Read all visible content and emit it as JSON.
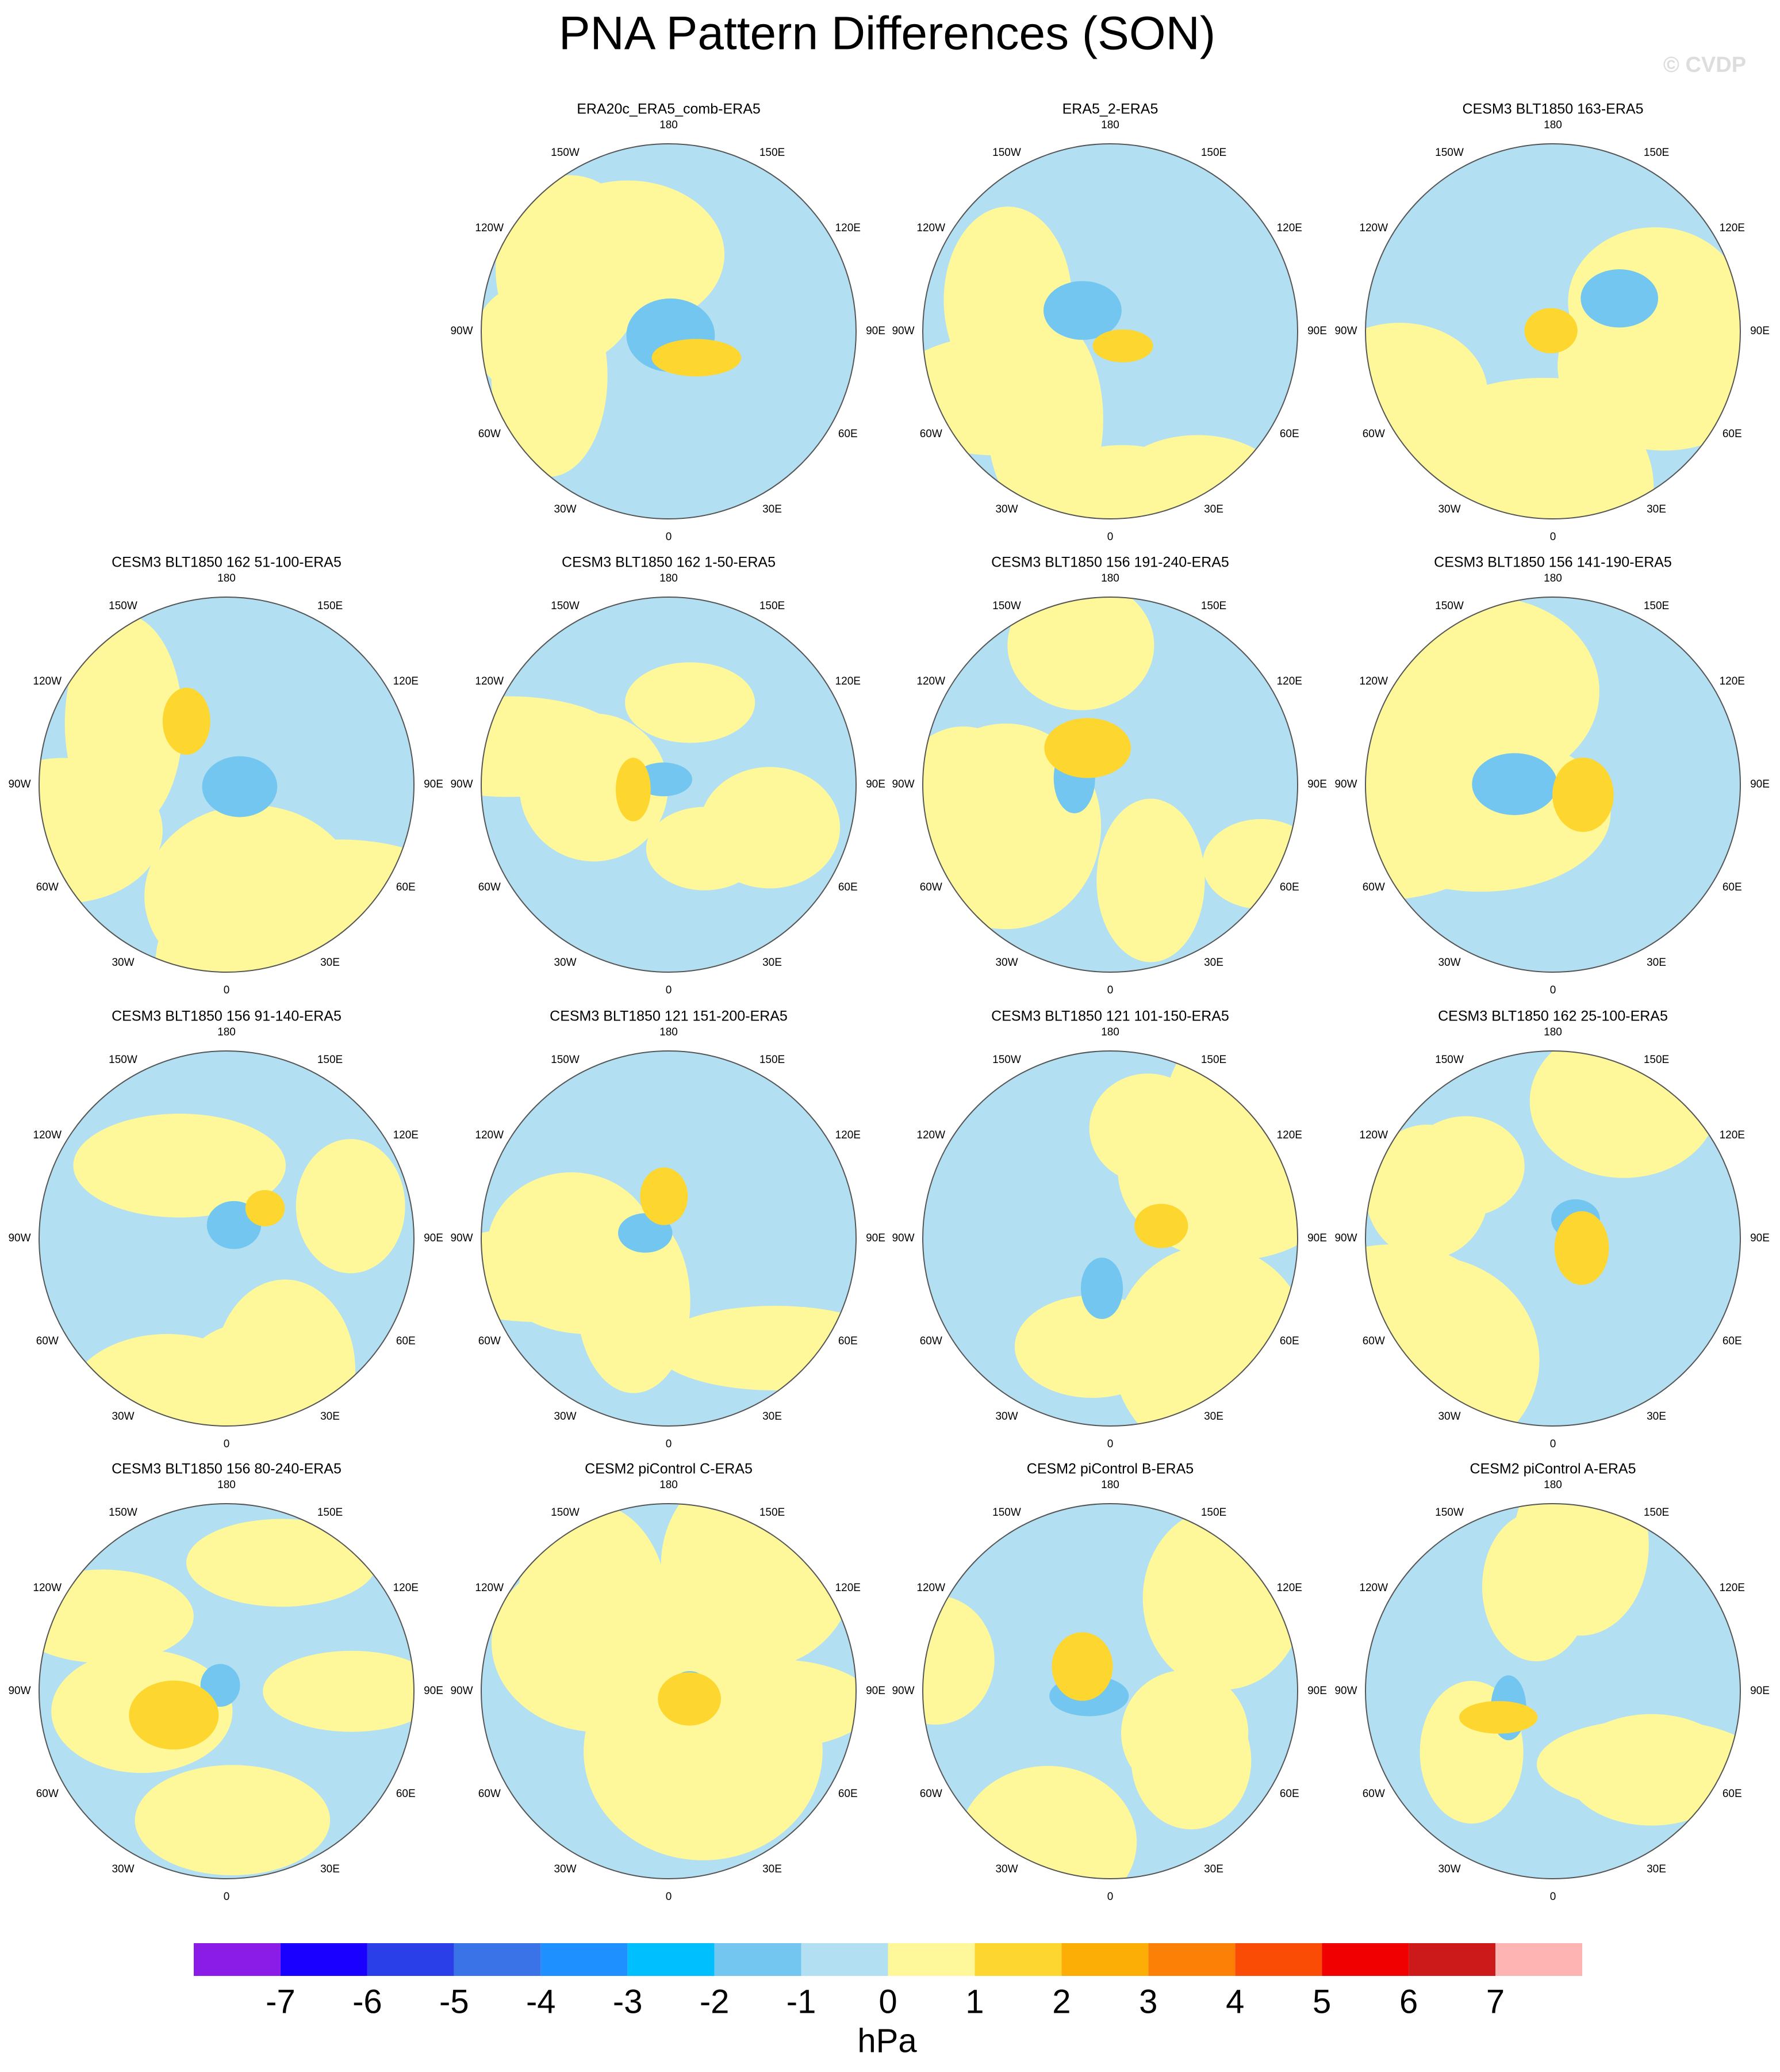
{
  "title": "PNA Pattern Differences (SON)",
  "watermark": "© CVDP",
  "lon_labels": [
    "180",
    "150E",
    "120E",
    "90E",
    "60E",
    "30E",
    "0",
    "30W",
    "60W",
    "90W",
    "120W",
    "150W"
  ],
  "panels": [
    {
      "title": "ERA20c_ERA5_comb-ERA5"
    },
    {
      "title": "ERA5_2-ERA5"
    },
    {
      "title": "CESM3 BLT1850 163-ERA5"
    },
    {
      "title": "CESM3 BLT1850 162 51-100-ERA5"
    },
    {
      "title": "CESM3 BLT1850 162 1-50-ERA5"
    },
    {
      "title": "CESM3 BLT1850 156 191-240-ERA5"
    },
    {
      "title": "CESM3 BLT1850 156 141-190-ERA5"
    },
    {
      "title": "CESM3 BLT1850 156 91-140-ERA5"
    },
    {
      "title": "CESM3 BLT1850 121 151-200-ERA5"
    },
    {
      "title": "CESM3 BLT1850 121 101-150-ERA5"
    },
    {
      "title": "CESM3 BLT1850 162 25-100-ERA5"
    },
    {
      "title": "CESM3 BLT1850 156 80-240-ERA5"
    },
    {
      "title": "CESM2 piControl C-ERA5"
    },
    {
      "title": "CESM2 piControl B-ERA5"
    },
    {
      "title": "CESM2 piControl A-ERA5"
    }
  ],
  "colorbar": {
    "colors": [
      "#8b1ce8",
      "#1a00ff",
      "#2a3fe8",
      "#3a73e8",
      "#1e90ff",
      "#00bfff",
      "#73c6f0",
      "#b3dff2",
      "#fef89a",
      "#fdd630",
      "#fcae07",
      "#fc8006",
      "#fa4c05",
      "#f00000",
      "#cc1a1a",
      "#ffb4b4"
    ],
    "ticks": [
      -7,
      -6,
      -5,
      -4,
      -3,
      -2,
      -1,
      0,
      1,
      2,
      3,
      4,
      5,
      6,
      7
    ],
    "unit": "hPa"
  }
}
